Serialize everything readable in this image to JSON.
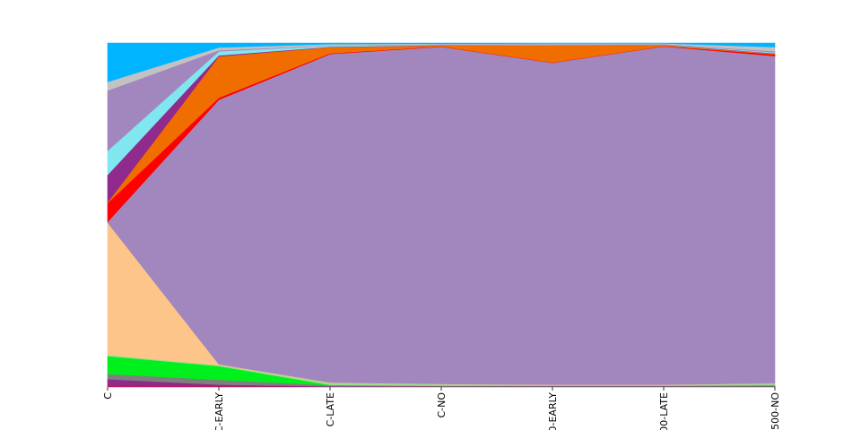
{
  "chart_data": {
    "type": "area",
    "stacked": true,
    "normalized": true,
    "ylim": [
      0,
      1
    ],
    "grid": false,
    "legend": "none",
    "categories": [
      "C",
      "C-EARLY",
      "C-LATE",
      "C-NO",
      "0-EARLY",
      "00-LATE",
      "500-NO"
    ],
    "series": [
      {
        "color": "#c0155a",
        "values": [
          0.005,
          0.003,
          0.001,
          0.001,
          0.001,
          0.001,
          0.001
        ]
      },
      {
        "color": "#8a2d8a",
        "values": [
          0.018,
          0.004,
          0.001,
          0.001,
          0.001,
          0.001,
          0.001
        ]
      },
      {
        "color": "#7f7f7f",
        "values": [
          0.015,
          0.014,
          0.003,
          0.001,
          0.001,
          0.001,
          0.001
        ]
      },
      {
        "color": "#00f01e",
        "values": [
          0.052,
          0.04,
          0.001,
          0.001,
          0.001,
          0.001,
          0.003
        ]
      },
      {
        "color": "#98df8a",
        "values": [
          0.003,
          0.003,
          0.006,
          0.004,
          0.002,
          0.002,
          0.004
        ]
      },
      {
        "color": "#fdc58a",
        "values": [
          0.385,
          0.002,
          0.001,
          0.001,
          0.001,
          0.001,
          0.001
        ]
      },
      {
        "color": "#a287bf",
        "values": [
          0.002,
          0.769,
          0.955,
          0.981,
          0.946,
          0.984,
          0.951
        ]
      },
      {
        "color": "#ff0000",
        "values": [
          0.055,
          0.006,
          0.002,
          0.001,
          0.001,
          0.001,
          0.005
        ]
      },
      {
        "color": "#f06e00",
        "values": [
          0.002,
          0.12,
          0.018,
          0.003,
          0.05,
          0.003,
          0.002
        ]
      },
      {
        "color": "#902a8c",
        "values": [
          0.08,
          0.003,
          0.001,
          0.001,
          0.001,
          0.001,
          0.001
        ]
      },
      {
        "color": "#80e6f0",
        "values": [
          0.07,
          0.012,
          0.003,
          0.001,
          0.002,
          0.001,
          0.003
        ]
      },
      {
        "color": "#a287bf",
        "values": [
          0.175,
          0.003,
          0.001,
          0.001,
          0.001,
          0.001,
          0.003
        ]
      },
      {
        "color": "#c2c2c2",
        "values": [
          0.025,
          0.008,
          0.004,
          0.002,
          0.002,
          0.002,
          0.012
        ]
      },
      {
        "color": "#00b4ff",
        "values": [
          0.113,
          0.013,
          0.003,
          0.002,
          0.001,
          0.001,
          0.012
        ]
      }
    ]
  }
}
